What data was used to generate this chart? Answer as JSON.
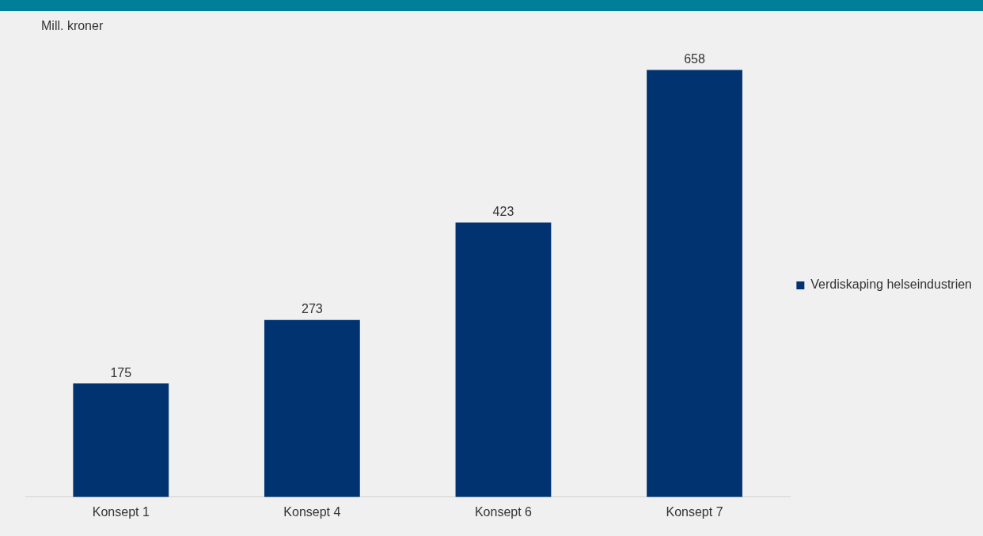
{
  "chart_data": {
    "type": "bar",
    "ylabel": "Mill. kroner",
    "categories": [
      "Konsept 1",
      "Konsept 4",
      "Konsept 6",
      "Konsept 7"
    ],
    "series": [
      {
        "name": "Verdiskaping helseindustrien",
        "color": "#003370",
        "values": [
          175,
          273,
          423,
          658
        ]
      }
    ],
    "data_labels": true,
    "legend": "right",
    "grid": false,
    "tick_labels": "x"
  }
}
